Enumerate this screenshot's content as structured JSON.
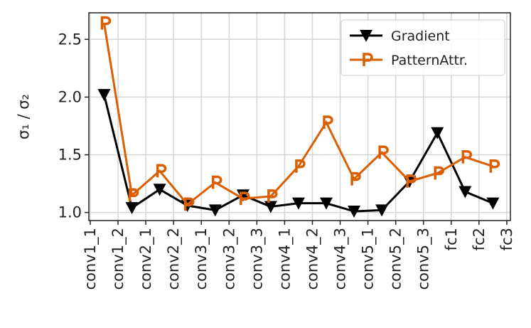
{
  "chart_data": {
    "type": "line",
    "y_label": "σ₁ / σ₂",
    "x": [
      0.5,
      1.5,
      2.5,
      3.5,
      4.5,
      5.5,
      6.5,
      7.5,
      8.5,
      9.5,
      10.5,
      11.5,
      12.5,
      13.5,
      14.5
    ],
    "xlim": [
      -0.05,
      15.13
    ],
    "xticks": [
      {
        "value": 0,
        "label": "conv1_1"
      },
      {
        "value": 1,
        "label": "conv1_2"
      },
      {
        "value": 2,
        "label": "conv2_1"
      },
      {
        "value": 3,
        "label": "conv2_2"
      },
      {
        "value": 4,
        "label": "conv3_1"
      },
      {
        "value": 5,
        "label": "conv3_2"
      },
      {
        "value": 6,
        "label": "conv3_3"
      },
      {
        "value": 7,
        "label": "conv4_1"
      },
      {
        "value": 8,
        "label": "conv4_2"
      },
      {
        "value": 9,
        "label": "conv4_3"
      },
      {
        "value": 10,
        "label": "conv5_1"
      },
      {
        "value": 11,
        "label": "conv5_2"
      },
      {
        "value": 12,
        "label": "conv5_3"
      },
      {
        "value": 13,
        "label": "fc1"
      },
      {
        "value": 14,
        "label": "fc2"
      },
      {
        "value": 15,
        "label": "fc3"
      }
    ],
    "ylim": [
      0.93,
      2.73
    ],
    "yticks": [
      {
        "value": 1,
        "label": "1.0"
      },
      1.5,
      {
        "value": 2,
        "label": "2.0"
      },
      2.5
    ],
    "grid": true,
    "legend": "upper right",
    "series": [
      {
        "name": "Gradient",
        "color": "#000000",
        "marker": "triangle-down",
        "values": [
          2.02,
          1.04,
          1.2,
          1.06,
          1.02,
          1.15,
          1.05,
          1.08,
          1.08,
          1.01,
          1.02,
          1.27,
          1.69,
          1.18,
          1.08
        ]
      },
      {
        "name": "PatternAttr.",
        "color": "#d95f02",
        "marker": "P",
        "values": [
          2.64,
          1.15,
          1.36,
          1.07,
          1.26,
          1.12,
          1.14,
          1.4,
          1.78,
          1.29,
          1.52,
          1.27,
          1.34,
          1.48,
          1.4
        ]
      }
    ]
  }
}
